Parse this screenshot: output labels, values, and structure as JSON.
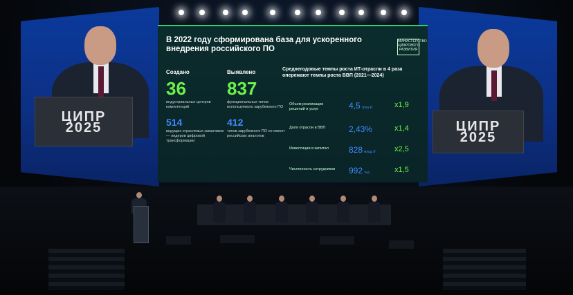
{
  "screen": {
    "title": "В 2022 году сформирована база для ускоренного внедрения российского ПО",
    "ministry_logo": "МИНИСТЕРСТВО ЦИФРОВОГО РАЗВИТИЯ",
    "created": {
      "label": "Создано",
      "value1": "36",
      "caption1": "индустриальных центров компетенций",
      "value2": "514",
      "caption2": "ведущих отраслевых заказчиков — лидеров цифровой трансформации"
    },
    "identified": {
      "label": "Выявлено",
      "value1": "837",
      "caption1": "функциональных типов используемого зарубежного ПО",
      "value2": "412",
      "caption2": "типов зарубежного ПО не имеют российских аналогов"
    },
    "growth": {
      "heading": "Среднегодовые темпы роста ИТ-отрасли в 4 раза опережают темпы роста ВВП (2021—2024)",
      "rows": [
        {
          "label": "Объем реализации решений и услуг",
          "value": "4,5",
          "unit": "трлн ₽",
          "mult": "x1,9"
        },
        {
          "label": "Доля отрасли в ВВП",
          "value": "2,43%",
          "unit": "",
          "mult": "x1,4"
        },
        {
          "label": "Инвестиции в капитал",
          "value": "828",
          "unit": "млрд ₽",
          "mult": "x2,5"
        },
        {
          "label": "Численность сотрудников",
          "value": "992",
          "unit": "тыс.",
          "mult": "x1,5"
        }
      ]
    }
  },
  "lectern_logo_line1": "ЦИПР",
  "lectern_logo_line2": "2025"
}
